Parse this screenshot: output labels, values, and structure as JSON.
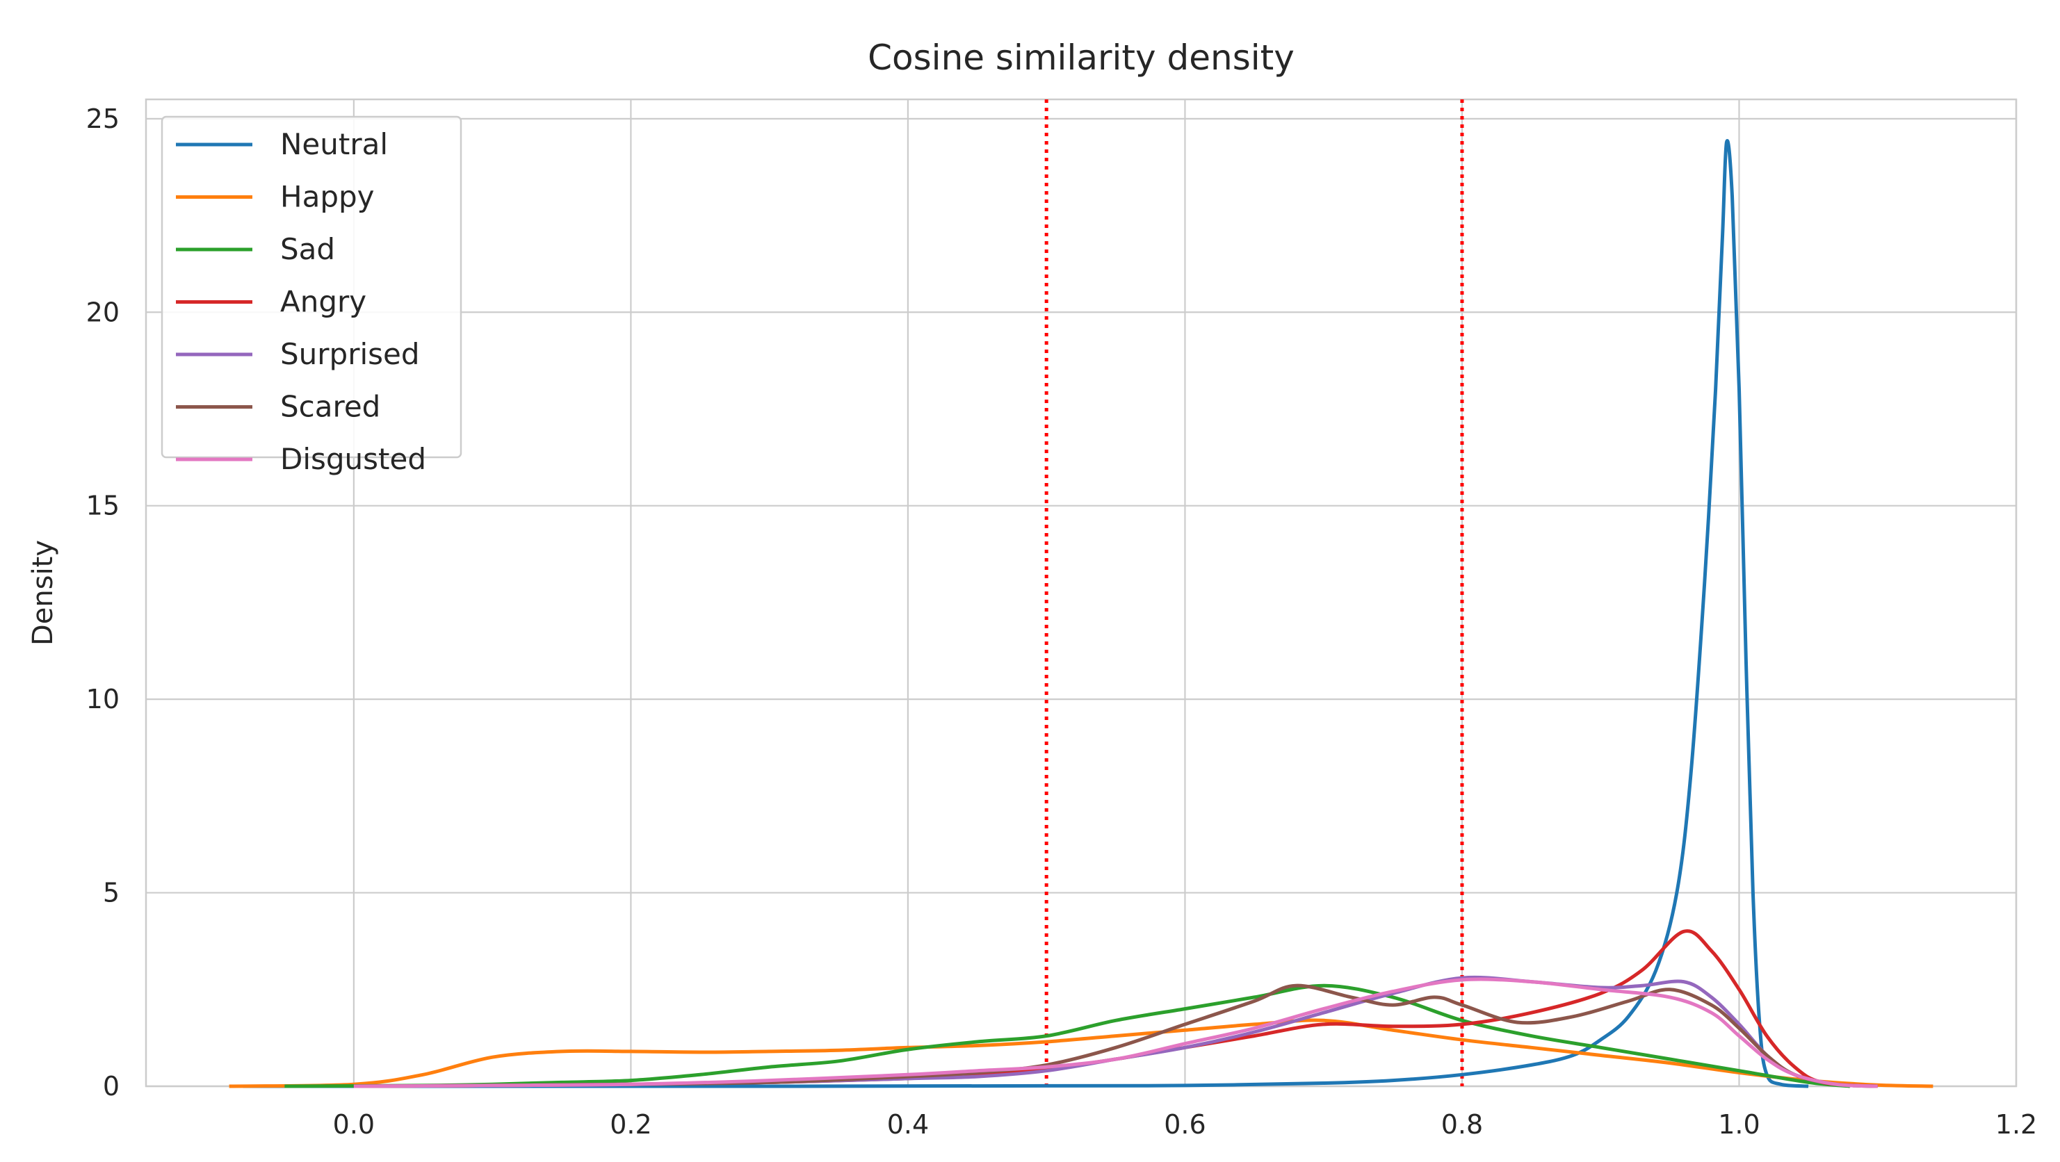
{
  "chart_data": {
    "type": "line",
    "title": "Cosine similarity density",
    "xlabel": "",
    "ylabel": "Density",
    "xlim": [
      -0.15,
      1.2
    ],
    "ylim": [
      0,
      25.5
    ],
    "xticks": [
      0.0,
      0.2,
      0.4,
      0.6,
      0.8,
      1.0,
      1.2
    ],
    "xtick_labels": [
      "0.0",
      "0.2",
      "0.4",
      "0.6",
      "0.8",
      "1.0",
      "1.2"
    ],
    "yticks": [
      0,
      5,
      10,
      15,
      20,
      25
    ],
    "ytick_labels": [
      "0",
      "5",
      "10",
      "15",
      "20",
      "25"
    ],
    "grid": true,
    "legend_position": "top-left",
    "vlines": [
      {
        "x": 0.5,
        "color": "#ff0000",
        "style": "dotted"
      },
      {
        "x": 0.8,
        "color": "#ff0000",
        "style": "dotted"
      }
    ],
    "series": [
      {
        "name": "Neutral",
        "color": "#1f77b4",
        "points": [
          [
            -0.08,
            0
          ],
          [
            0.3,
            0
          ],
          [
            0.5,
            0.01
          ],
          [
            0.6,
            0.02
          ],
          [
            0.7,
            0.08
          ],
          [
            0.75,
            0.15
          ],
          [
            0.8,
            0.3
          ],
          [
            0.85,
            0.55
          ],
          [
            0.88,
            0.8
          ],
          [
            0.9,
            1.2
          ],
          [
            0.92,
            1.8
          ],
          [
            0.94,
            3.0
          ],
          [
            0.955,
            5.0
          ],
          [
            0.965,
            8.0
          ],
          [
            0.975,
            13.0
          ],
          [
            0.983,
            18.0
          ],
          [
            0.988,
            22.0
          ],
          [
            0.991,
            24.4
          ],
          [
            0.995,
            23.0
          ],
          [
            1.0,
            18.0
          ],
          [
            1.005,
            11.0
          ],
          [
            1.01,
            5.0
          ],
          [
            1.015,
            1.5
          ],
          [
            1.02,
            0.3
          ],
          [
            1.03,
            0.05
          ],
          [
            1.05,
            0
          ]
        ]
      },
      {
        "name": "Happy",
        "color": "#ff7f0e",
        "points": [
          [
            -0.09,
            0
          ],
          [
            0.0,
            0.05
          ],
          [
            0.05,
            0.3
          ],
          [
            0.1,
            0.75
          ],
          [
            0.15,
            0.9
          ],
          [
            0.2,
            0.9
          ],
          [
            0.25,
            0.88
          ],
          [
            0.3,
            0.9
          ],
          [
            0.35,
            0.93
          ],
          [
            0.4,
            1.0
          ],
          [
            0.45,
            1.05
          ],
          [
            0.5,
            1.15
          ],
          [
            0.55,
            1.3
          ],
          [
            0.6,
            1.45
          ],
          [
            0.65,
            1.6
          ],
          [
            0.7,
            1.7
          ],
          [
            0.75,
            1.45
          ],
          [
            0.8,
            1.2
          ],
          [
            0.85,
            1.0
          ],
          [
            0.9,
            0.8
          ],
          [
            0.95,
            0.6
          ],
          [
            1.0,
            0.35
          ],
          [
            1.05,
            0.15
          ],
          [
            1.1,
            0.03
          ],
          [
            1.14,
            0
          ]
        ]
      },
      {
        "name": "Sad",
        "color": "#2ca02c",
        "points": [
          [
            -0.05,
            0
          ],
          [
            0.05,
            0.02
          ],
          [
            0.1,
            0.05
          ],
          [
            0.15,
            0.1
          ],
          [
            0.2,
            0.15
          ],
          [
            0.25,
            0.3
          ],
          [
            0.3,
            0.5
          ],
          [
            0.35,
            0.65
          ],
          [
            0.4,
            0.95
          ],
          [
            0.45,
            1.15
          ],
          [
            0.5,
            1.3
          ],
          [
            0.55,
            1.7
          ],
          [
            0.6,
            2.0
          ],
          [
            0.65,
            2.3
          ],
          [
            0.7,
            2.6
          ],
          [
            0.75,
            2.3
          ],
          [
            0.8,
            1.7
          ],
          [
            0.85,
            1.3
          ],
          [
            0.9,
            1.0
          ],
          [
            0.95,
            0.7
          ],
          [
            1.0,
            0.4
          ],
          [
            1.05,
            0.1
          ],
          [
            1.08,
            0
          ]
        ]
      },
      {
        "name": "Angry",
        "color": "#d62728",
        "points": [
          [
            0.0,
            0
          ],
          [
            0.1,
            0.02
          ],
          [
            0.2,
            0.05
          ],
          [
            0.3,
            0.1
          ],
          [
            0.4,
            0.2
          ],
          [
            0.45,
            0.3
          ],
          [
            0.5,
            0.45
          ],
          [
            0.55,
            0.7
          ],
          [
            0.6,
            1.0
          ],
          [
            0.65,
            1.3
          ],
          [
            0.7,
            1.6
          ],
          [
            0.75,
            1.55
          ],
          [
            0.8,
            1.6
          ],
          [
            0.85,
            1.9
          ],
          [
            0.9,
            2.4
          ],
          [
            0.93,
            3.0
          ],
          [
            0.96,
            4.0
          ],
          [
            0.98,
            3.5
          ],
          [
            1.0,
            2.5
          ],
          [
            1.02,
            1.3
          ],
          [
            1.04,
            0.5
          ],
          [
            1.06,
            0.1
          ],
          [
            1.1,
            0
          ]
        ]
      },
      {
        "name": "Surprised",
        "color": "#9467bd",
        "points": [
          [
            0.0,
            0
          ],
          [
            0.1,
            0.02
          ],
          [
            0.2,
            0.05
          ],
          [
            0.3,
            0.1
          ],
          [
            0.4,
            0.2
          ],
          [
            0.45,
            0.25
          ],
          [
            0.5,
            0.4
          ],
          [
            0.55,
            0.7
          ],
          [
            0.6,
            1.0
          ],
          [
            0.65,
            1.4
          ],
          [
            0.7,
            1.9
          ],
          [
            0.75,
            2.4
          ],
          [
            0.8,
            2.8
          ],
          [
            0.85,
            2.7
          ],
          [
            0.9,
            2.55
          ],
          [
            0.93,
            2.6
          ],
          [
            0.96,
            2.7
          ],
          [
            0.98,
            2.3
          ],
          [
            1.0,
            1.6
          ],
          [
            1.02,
            0.8
          ],
          [
            1.04,
            0.3
          ],
          [
            1.07,
            0.05
          ],
          [
            1.1,
            0
          ]
        ]
      },
      {
        "name": "Scared",
        "color": "#8c564b",
        "points": [
          [
            0.0,
            0
          ],
          [
            0.1,
            0.02
          ],
          [
            0.2,
            0.05
          ],
          [
            0.3,
            0.1
          ],
          [
            0.4,
            0.25
          ],
          [
            0.45,
            0.35
          ],
          [
            0.5,
            0.55
          ],
          [
            0.55,
            1.0
          ],
          [
            0.6,
            1.6
          ],
          [
            0.65,
            2.2
          ],
          [
            0.68,
            2.6
          ],
          [
            0.72,
            2.3
          ],
          [
            0.75,
            2.1
          ],
          [
            0.78,
            2.3
          ],
          [
            0.8,
            2.1
          ],
          [
            0.84,
            1.65
          ],
          [
            0.88,
            1.8
          ],
          [
            0.92,
            2.2
          ],
          [
            0.95,
            2.5
          ],
          [
            0.98,
            2.1
          ],
          [
            1.0,
            1.5
          ],
          [
            1.02,
            0.8
          ],
          [
            1.04,
            0.3
          ],
          [
            1.07,
            0.05
          ],
          [
            1.1,
            0
          ]
        ]
      },
      {
        "name": "Disgusted",
        "color": "#e377c2",
        "points": [
          [
            0.0,
            0
          ],
          [
            0.1,
            0.02
          ],
          [
            0.2,
            0.05
          ],
          [
            0.3,
            0.15
          ],
          [
            0.4,
            0.3
          ],
          [
            0.45,
            0.4
          ],
          [
            0.5,
            0.5
          ],
          [
            0.55,
            0.7
          ],
          [
            0.6,
            1.1
          ],
          [
            0.65,
            1.5
          ],
          [
            0.7,
            2.0
          ],
          [
            0.75,
            2.45
          ],
          [
            0.8,
            2.75
          ],
          [
            0.85,
            2.7
          ],
          [
            0.9,
            2.5
          ],
          [
            0.95,
            2.3
          ],
          [
            0.98,
            1.9
          ],
          [
            1.0,
            1.3
          ],
          [
            1.02,
            0.7
          ],
          [
            1.04,
            0.3
          ],
          [
            1.07,
            0.05
          ],
          [
            1.1,
            0
          ]
        ]
      }
    ]
  }
}
